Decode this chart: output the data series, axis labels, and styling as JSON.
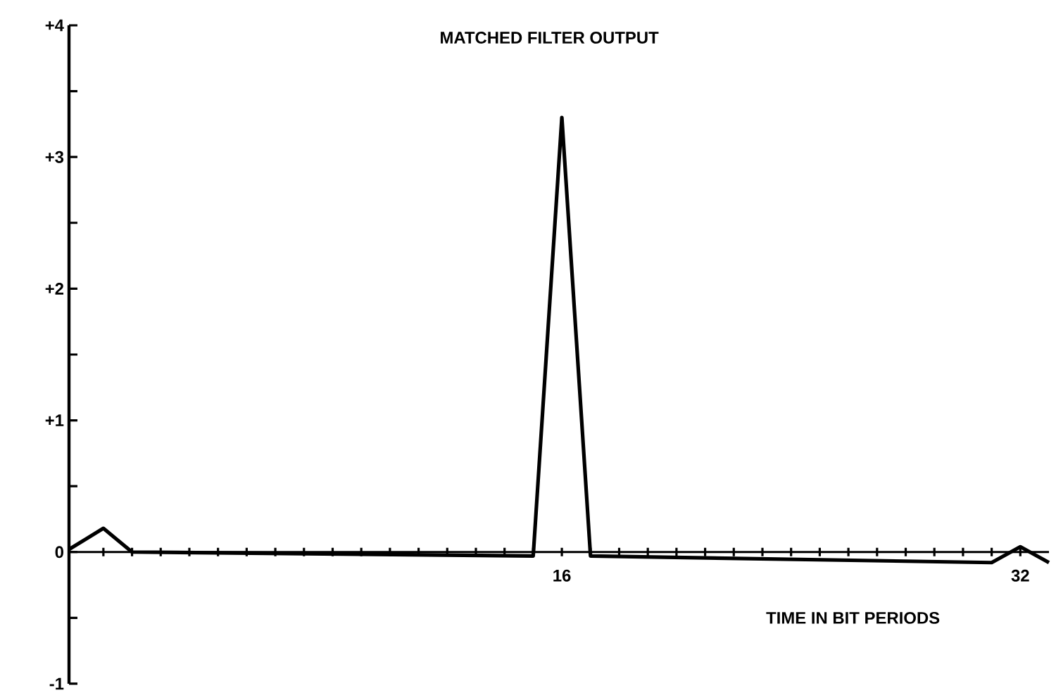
{
  "chart_data": {
    "type": "line",
    "title": "MATCHED FILTER OUTPUT",
    "xlabel": "TIME IN BIT PERIODS",
    "x": [
      -1.2,
      0,
      1,
      15,
      16,
      17,
      31,
      32,
      33
    ],
    "series": [
      {
        "color": "#000000",
        "values": [
          0.02,
          0.18,
          0,
          -0.03,
          3.3,
          -0.03,
          -0.08,
          0.04,
          -0.08
        ]
      }
    ],
    "xlim": [
      -1.2,
      33
    ],
    "xticks": [
      {
        "value": 0,
        "label": null
      },
      {
        "value": 1,
        "label": null
      },
      {
        "value": 2,
        "label": null
      },
      {
        "value": 3,
        "label": null
      },
      {
        "value": 4,
        "label": null
      },
      {
        "value": 5,
        "label": null
      },
      {
        "value": 6,
        "label": null
      },
      {
        "value": 7,
        "label": null
      },
      {
        "value": 8,
        "label": null
      },
      {
        "value": 9,
        "label": null
      },
      {
        "value": 10,
        "label": null
      },
      {
        "value": 11,
        "label": null
      },
      {
        "value": 12,
        "label": null
      },
      {
        "value": 13,
        "label": null
      },
      {
        "value": 14,
        "label": null
      },
      {
        "value": 15,
        "label": null
      },
      16,
      {
        "value": 17,
        "label": null
      },
      {
        "value": 18,
        "label": null
      },
      {
        "value": 19,
        "label": null
      },
      {
        "value": 20,
        "label": null
      },
      {
        "value": 21,
        "label": null
      },
      {
        "value": 22,
        "label": null
      },
      {
        "value": 23,
        "label": null
      },
      {
        "value": 24,
        "label": null
      },
      {
        "value": 25,
        "label": null
      },
      {
        "value": 26,
        "label": null
      },
      {
        "value": 27,
        "label": null
      },
      {
        "value": 28,
        "label": null
      },
      {
        "value": 29,
        "label": null
      },
      {
        "value": 30,
        "label": null
      },
      {
        "value": 31,
        "label": null
      },
      32
    ],
    "ylim": [
      -1,
      4
    ],
    "yticks": [
      {
        "value": -1,
        "label": "-1"
      },
      {
        "value": -0.5,
        "label": null
      },
      0,
      {
        "value": 0.5,
        "label": null
      },
      {
        "value": 1,
        "label": "+1"
      },
      {
        "value": 1.5,
        "label": null
      },
      {
        "value": 2,
        "label": "+2"
      },
      {
        "value": 2.5,
        "label": null
      },
      {
        "value": 3,
        "label": "+3"
      },
      {
        "value": 3.5,
        "label": null
      },
      {
        "value": 4,
        "label": "+4"
      }
    ],
    "marker": "none",
    "line_style": "solid"
  }
}
